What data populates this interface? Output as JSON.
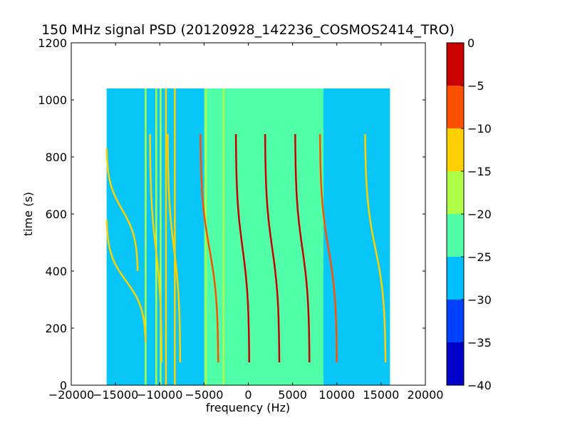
{
  "chart_data": {
    "type": "heatmap",
    "title": "150 MHz signal PSD (20120928_142236_COSMOS2414_TRO)",
    "xlabel": "frequency (Hz)",
    "ylabel": "time (s)",
    "xlim": [
      -20000,
      20000
    ],
    "ylim": [
      0,
      1200
    ],
    "x_ticks": [
      -20000,
      -15000,
      -10000,
      -5000,
      0,
      5000,
      10000,
      15000,
      20000
    ],
    "x_tick_labels": [
      "−20000",
      "−15000",
      "−10000",
      "−5000",
      "0",
      "5000",
      "10000",
      "15000",
      "20000"
    ],
    "y_ticks": [
      0,
      200,
      400,
      600,
      800,
      1000,
      1200
    ],
    "y_tick_labels": [
      "0",
      "200",
      "400",
      "600",
      "800",
      "1000",
      "1200"
    ],
    "data_extent": {
      "x": [
        -16000,
        16000
      ],
      "y": [
        0,
        1040
      ]
    },
    "colorbar": {
      "levels": [
        -40,
        -35,
        -30,
        -25,
        -20,
        -15,
        -10,
        -5,
        0
      ],
      "tick_labels": [
        "−40",
        "−35",
        "−30",
        "−25",
        "−20",
        "−15",
        "−10",
        "−5",
        "0"
      ],
      "colors": [
        "#0000c8",
        "#0040ff",
        "#00c0ff",
        "#50ffa8",
        "#b0ff48",
        "#ffd000",
        "#ff5000",
        "#c80000"
      ]
    },
    "background_level": -22,
    "noise_bands": [
      {
        "x": [
          -16000,
          -9000
        ],
        "level": -28
      },
      {
        "x": [
          -9000,
          -5000
        ],
        "level": -27
      },
      {
        "x": [
          8500,
          16000
        ],
        "level": -28
      }
    ],
    "vertical_lines": [
      {
        "x": -11600,
        "y": [
          0,
          1040
        ],
        "level": -18
      },
      {
        "x": -10400,
        "y": [
          0,
          1040
        ],
        "level": -18
      },
      {
        "x": -9900,
        "y": [
          0,
          1040
        ],
        "level": -16
      },
      {
        "x": -9300,
        "y": [
          0,
          1040
        ],
        "level": -15
      },
      {
        "x": -8300,
        "y": [
          0,
          1040
        ],
        "level": -15
      },
      {
        "x": -4800,
        "y": [
          0,
          1040
        ],
        "level": -16
      },
      {
        "x": -2800,
        "y": [
          0,
          1040
        ],
        "level": -20
      }
    ],
    "doppler_traces": [
      {
        "x_top": -1400,
        "x_bottom": 100,
        "y_top": 880,
        "y_bottom": 80,
        "level": -3
      },
      {
        "x_top": 1900,
        "x_bottom": 3500,
        "y_top": 880,
        "y_bottom": 80,
        "level": -3
      },
      {
        "x_top": 5300,
        "x_bottom": 6900,
        "y_top": 880,
        "y_bottom": 80,
        "level": -4
      },
      {
        "x_top": -5400,
        "x_bottom": -3400,
        "y_top": 880,
        "y_bottom": 80,
        "level": -6
      },
      {
        "x_top": 8100,
        "x_bottom": 10000,
        "y_top": 880,
        "y_bottom": 80,
        "level": -10
      },
      {
        "x_top": 13200,
        "x_bottom": 15500,
        "y_top": 880,
        "y_bottom": 80,
        "level": -12
      },
      {
        "x_top": -9100,
        "x_bottom": -7700,
        "y_top": 880,
        "y_bottom": 80,
        "level": -13
      },
      {
        "x_top": -16000,
        "x_bottom": -12500,
        "y_top": 830,
        "y_bottom": 400,
        "level": -14
      },
      {
        "x_top": -16000,
        "x_bottom": -11600,
        "y_top": 580,
        "y_bottom": 150,
        "level": -14
      },
      {
        "x_top": -11100,
        "x_bottom": -9800,
        "y_top": 880,
        "y_bottom": 80,
        "level": -15
      }
    ]
  }
}
